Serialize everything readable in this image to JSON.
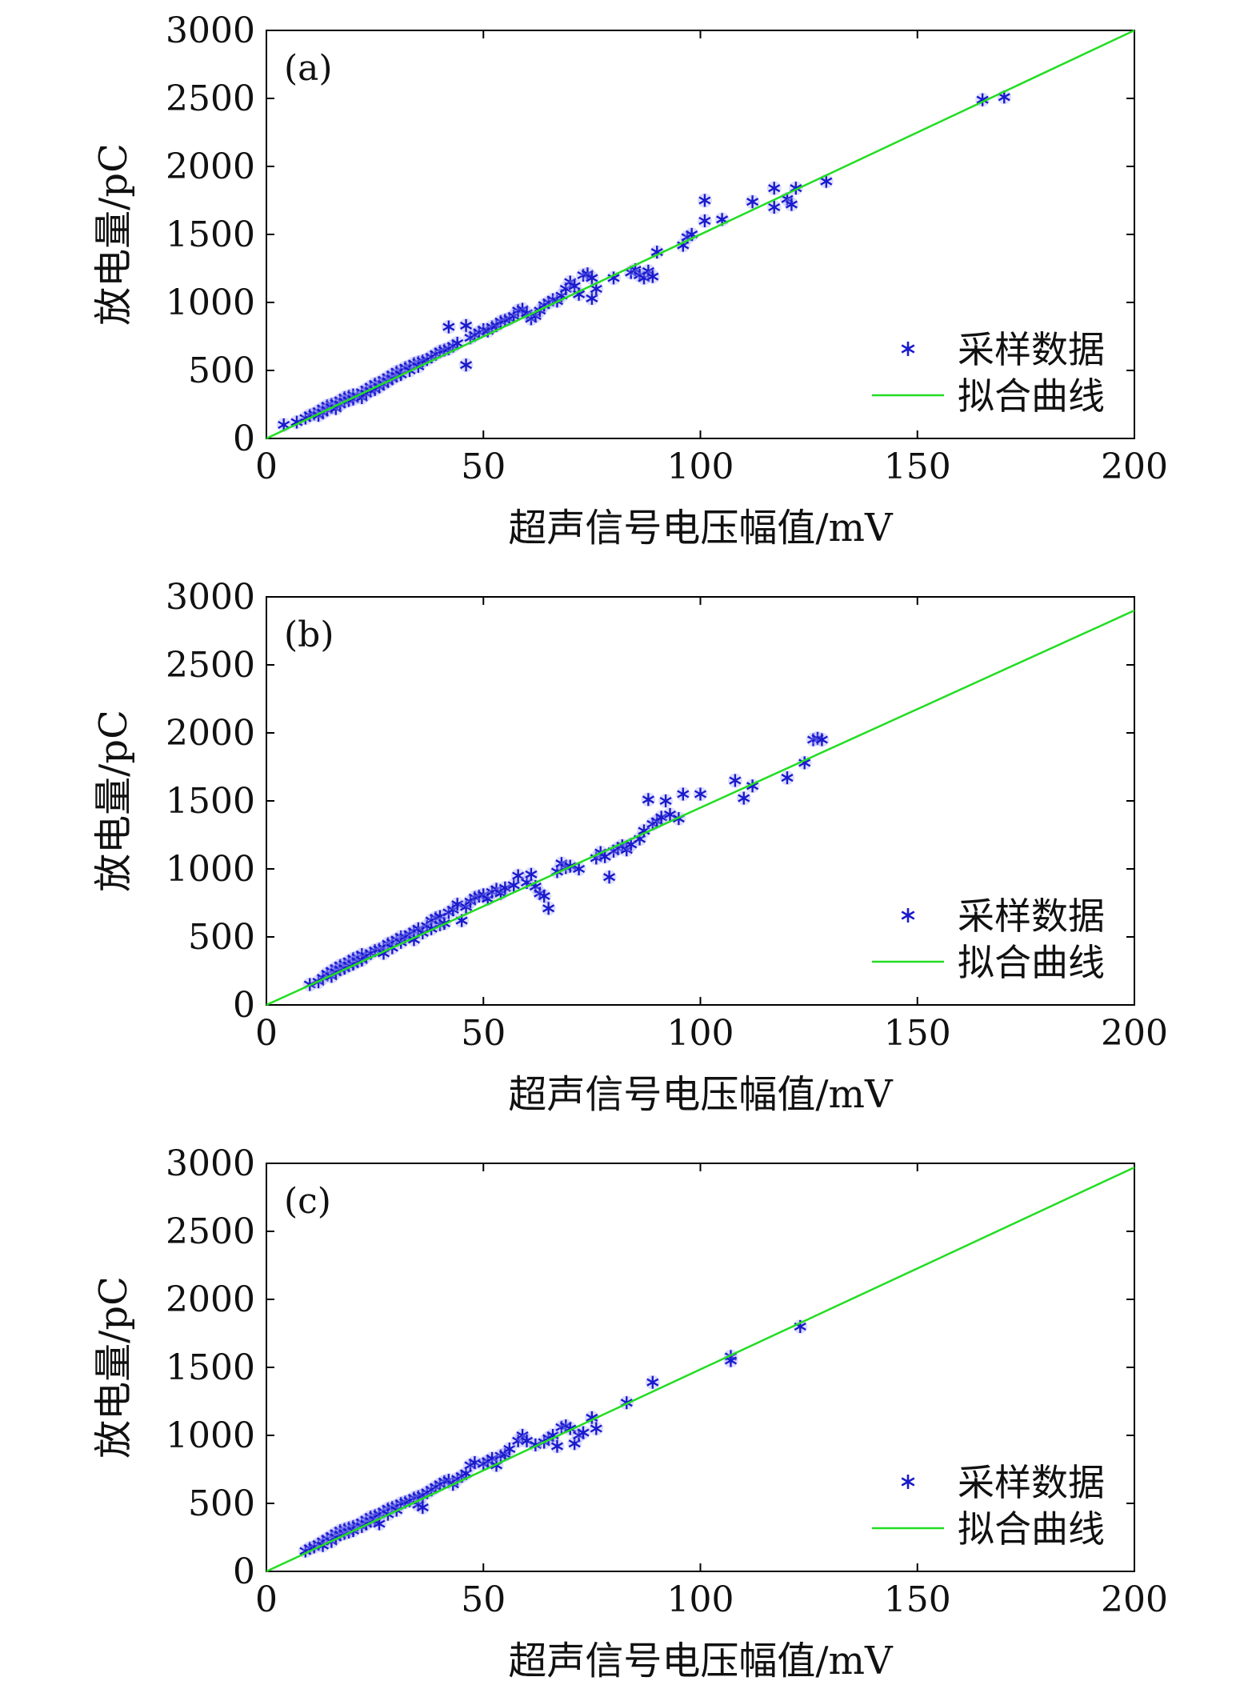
{
  "colors": {
    "points": "#1a1acc",
    "point_halo": "#a0a0ff",
    "fit": "#22dd22",
    "axis": "#000000"
  },
  "legend": {
    "marker_label": "采样数据",
    "line_label": "拟合曲线"
  },
  "chart_data": [
    {
      "type": "scatter",
      "panel_label": "(a)",
      "xlabel": "超声信号电压幅值/mV",
      "ylabel": "放电量/pC",
      "xlim": [
        0,
        200
      ],
      "ylim": [
        0,
        3000
      ],
      "xticks": [
        0,
        50,
        100,
        150,
        200
      ],
      "yticks": [
        0,
        500,
        1000,
        1500,
        2000,
        2500,
        3000
      ],
      "grid": false,
      "legend_position": "lower-right",
      "fit": {
        "slope": 15.0,
        "intercept": 0
      },
      "points": [
        [
          4,
          100
        ],
        [
          7,
          120
        ],
        [
          9,
          150
        ],
        [
          10,
          170
        ],
        [
          11,
          180
        ],
        [
          12,
          200
        ],
        [
          12,
          170
        ],
        [
          13,
          220
        ],
        [
          13,
          190
        ],
        [
          14,
          240
        ],
        [
          14,
          210
        ],
        [
          15,
          250
        ],
        [
          15,
          230
        ],
        [
          16,
          260
        ],
        [
          16,
          220
        ],
        [
          17,
          280
        ],
        [
          17,
          250
        ],
        [
          18,
          300
        ],
        [
          18,
          270
        ],
        [
          19,
          310
        ],
        [
          19,
          280
        ],
        [
          20,
          320
        ],
        [
          20,
          290
        ],
        [
          21,
          310
        ],
        [
          22,
          340
        ],
        [
          22,
          300
        ],
        [
          23,
          360
        ],
        [
          23,
          330
        ],
        [
          24,
          380
        ],
        [
          24,
          350
        ],
        [
          25,
          400
        ],
        [
          25,
          360
        ],
        [
          26,
          410
        ],
        [
          26,
          380
        ],
        [
          27,
          430
        ],
        [
          27,
          400
        ],
        [
          28,
          450
        ],
        [
          28,
          420
        ],
        [
          29,
          470
        ],
        [
          29,
          440
        ],
        [
          30,
          490
        ],
        [
          30,
          460
        ],
        [
          31,
          500
        ],
        [
          31,
          470
        ],
        [
          32,
          520
        ],
        [
          33,
          530
        ],
        [
          33,
          500
        ],
        [
          34,
          550
        ],
        [
          35,
          560
        ],
        [
          35,
          530
        ],
        [
          36,
          570
        ],
        [
          37,
          580
        ],
        [
          38,
          600
        ],
        [
          39,
          620
        ],
        [
          40,
          640
        ],
        [
          41,
          650
        ],
        [
          42,
          660
        ],
        [
          42,
          820
        ],
        [
          43,
          680
        ],
        [
          44,
          700
        ],
        [
          46,
          830
        ],
        [
          46,
          540
        ],
        [
          47,
          740
        ],
        [
          48,
          760
        ],
        [
          49,
          780
        ],
        [
          50,
          800
        ],
        [
          51,
          790
        ],
        [
          52,
          820
        ],
        [
          53,
          830
        ],
        [
          54,
          860
        ],
        [
          55,
          870
        ],
        [
          56,
          880
        ],
        [
          57,
          900
        ],
        [
          58,
          940
        ],
        [
          59,
          950
        ],
        [
          60,
          920
        ],
        [
          61,
          880
        ],
        [
          62,
          900
        ],
        [
          63,
          940
        ],
        [
          64,
          980
        ],
        [
          65,
          1000
        ],
        [
          66,
          1020
        ],
        [
          67,
          1010
        ],
        [
          68,
          1050
        ],
        [
          69,
          1100
        ],
        [
          70,
          1150
        ],
        [
          71,
          1120
        ],
        [
          72,
          1060
        ],
        [
          73,
          1200
        ],
        [
          74,
          1210
        ],
        [
          75,
          1180
        ],
        [
          75,
          1030
        ],
        [
          76,
          1100
        ],
        [
          80,
          1180
        ],
        [
          84,
          1220
        ],
        [
          85,
          1240
        ],
        [
          86,
          1200
        ],
        [
          87,
          1180
        ],
        [
          88,
          1230
        ],
        [
          89,
          1190
        ],
        [
          90,
          1370
        ],
        [
          96,
          1420
        ],
        [
          97,
          1480
        ],
        [
          98,
          1500
        ],
        [
          101,
          1750
        ],
        [
          101,
          1600
        ],
        [
          105,
          1610
        ],
        [
          112,
          1740
        ],
        [
          117,
          1840
        ],
        [
          117,
          1700
        ],
        [
          120,
          1760
        ],
        [
          121,
          1720
        ],
        [
          122,
          1840
        ],
        [
          129,
          1890
        ],
        [
          165,
          2490
        ],
        [
          170,
          2510
        ]
      ]
    },
    {
      "type": "scatter",
      "panel_label": "(b)",
      "xlabel": "超声信号电压幅值/mV",
      "ylabel": "放电量/pC",
      "xlim": [
        0,
        200
      ],
      "ylim": [
        0,
        3000
      ],
      "xticks": [
        0,
        50,
        100,
        150,
        200
      ],
      "yticks": [
        0,
        500,
        1000,
        1500,
        2000,
        2500,
        3000
      ],
      "grid": false,
      "legend_position": "lower-right",
      "fit": {
        "slope": 14.5,
        "intercept": 0
      },
      "points": [
        [
          10,
          150
        ],
        [
          12,
          170
        ],
        [
          13,
          200
        ],
        [
          14,
          230
        ],
        [
          15,
          250
        ],
        [
          15,
          210
        ],
        [
          16,
          270
        ],
        [
          16,
          240
        ],
        [
          17,
          290
        ],
        [
          17,
          260
        ],
        [
          18,
          300
        ],
        [
          18,
          270
        ],
        [
          19,
          320
        ],
        [
          19,
          290
        ],
        [
          20,
          340
        ],
        [
          20,
          300
        ],
        [
          21,
          350
        ],
        [
          21,
          320
        ],
        [
          22,
          370
        ],
        [
          22,
          330
        ],
        [
          23,
          360
        ],
        [
          24,
          380
        ],
        [
          25,
          400
        ],
        [
          26,
          410
        ],
        [
          27,
          420
        ],
        [
          27,
          380
        ],
        [
          28,
          450
        ],
        [
          29,
          460
        ],
        [
          29,
          420
        ],
        [
          30,
          480
        ],
        [
          31,
          500
        ],
        [
          31,
          460
        ],
        [
          32,
          500
        ],
        [
          33,
          520
        ],
        [
          34,
          540
        ],
        [
          34,
          480
        ],
        [
          35,
          560
        ],
        [
          36,
          530
        ],
        [
          37,
          580
        ],
        [
          38,
          620
        ],
        [
          38,
          560
        ],
        [
          39,
          640
        ],
        [
          40,
          650
        ],
        [
          40,
          590
        ],
        [
          41,
          600
        ],
        [
          42,
          680
        ],
        [
          43,
          700
        ],
        [
          44,
          740
        ],
        [
          45,
          620
        ],
        [
          46,
          720
        ],
        [
          47,
          760
        ],
        [
          48,
          790
        ],
        [
          49,
          800
        ],
        [
          50,
          810
        ],
        [
          51,
          780
        ],
        [
          52,
          830
        ],
        [
          53,
          850
        ],
        [
          54,
          820
        ],
        [
          55,
          860
        ],
        [
          57,
          880
        ],
        [
          58,
          950
        ],
        [
          60,
          900
        ],
        [
          61,
          960
        ],
        [
          62,
          870
        ],
        [
          63,
          820
        ],
        [
          64,
          800
        ],
        [
          65,
          710
        ],
        [
          67,
          980
        ],
        [
          68,
          1040
        ],
        [
          69,
          1010
        ],
        [
          70,
          1020
        ],
        [
          72,
          1000
        ],
        [
          76,
          1080
        ],
        [
          77,
          1120
        ],
        [
          78,
          1090
        ],
        [
          79,
          940
        ],
        [
          80,
          1130
        ],
        [
          81,
          1150
        ],
        [
          82,
          1170
        ],
        [
          83,
          1140
        ],
        [
          84,
          1180
        ],
        [
          86,
          1220
        ],
        [
          87,
          1280
        ],
        [
          88,
          1510
        ],
        [
          89,
          1330
        ],
        [
          90,
          1350
        ],
        [
          91,
          1380
        ],
        [
          92,
          1500
        ],
        [
          93,
          1400
        ],
        [
          95,
          1370
        ],
        [
          96,
          1550
        ],
        [
          100,
          1550
        ],
        [
          108,
          1650
        ],
        [
          110,
          1520
        ],
        [
          112,
          1610
        ],
        [
          120,
          1670
        ],
        [
          124,
          1780
        ],
        [
          126,
          1950
        ],
        [
          127,
          1960
        ],
        [
          128,
          1950
        ]
      ]
    },
    {
      "type": "scatter",
      "panel_label": "(c)",
      "xlabel": "超声信号电压幅值/mV",
      "ylabel": "放电量/pC",
      "xlim": [
        0,
        200
      ],
      "ylim": [
        0,
        3000
      ],
      "xticks": [
        0,
        50,
        100,
        150,
        200
      ],
      "yticks": [
        0,
        500,
        1000,
        1500,
        2000,
        2500,
        3000
      ],
      "grid": false,
      "legend_position": "lower-right",
      "fit": {
        "slope": 14.85,
        "intercept": 0
      },
      "points": [
        [
          9,
          150
        ],
        [
          10,
          170
        ],
        [
          11,
          180
        ],
        [
          12,
          200
        ],
        [
          13,
          220
        ],
        [
          13,
          190
        ],
        [
          14,
          240
        ],
        [
          15,
          260
        ],
        [
          15,
          220
        ],
        [
          16,
          280
        ],
        [
          16,
          250
        ],
        [
          17,
          300
        ],
        [
          17,
          270
        ],
        [
          18,
          310
        ],
        [
          18,
          280
        ],
        [
          19,
          320
        ],
        [
          19,
          290
        ],
        [
          20,
          330
        ],
        [
          20,
          300
        ],
        [
          21,
          340
        ],
        [
          22,
          360
        ],
        [
          22,
          330
        ],
        [
          23,
          380
        ],
        [
          23,
          350
        ],
        [
          24,
          400
        ],
        [
          24,
          370
        ],
        [
          25,
          410
        ],
        [
          25,
          380
        ],
        [
          26,
          420
        ],
        [
          26,
          350
        ],
        [
          27,
          440
        ],
        [
          28,
          460
        ],
        [
          28,
          420
        ],
        [
          29,
          470
        ],
        [
          30,
          480
        ],
        [
          30,
          450
        ],
        [
          31,
          500
        ],
        [
          32,
          510
        ],
        [
          33,
          520
        ],
        [
          34,
          540
        ],
        [
          35,
          550
        ],
        [
          35,
          490
        ],
        [
          36,
          560
        ],
        [
          36,
          470
        ],
        [
          37,
          580
        ],
        [
          38,
          600
        ],
        [
          39,
          620
        ],
        [
          40,
          640
        ],
        [
          41,
          660
        ],
        [
          42,
          670
        ],
        [
          43,
          640
        ],
        [
          44,
          680
        ],
        [
          45,
          700
        ],
        [
          46,
          720
        ],
        [
          47,
          780
        ],
        [
          48,
          800
        ],
        [
          50,
          790
        ],
        [
          51,
          810
        ],
        [
          52,
          830
        ],
        [
          53,
          780
        ],
        [
          54,
          850
        ],
        [
          55,
          860
        ],
        [
          56,
          900
        ],
        [
          58,
          960
        ],
        [
          59,
          1000
        ],
        [
          60,
          960
        ],
        [
          62,
          930
        ],
        [
          64,
          950
        ],
        [
          65,
          980
        ],
        [
          66,
          1000
        ],
        [
          67,
          920
        ],
        [
          68,
          1060
        ],
        [
          69,
          1070
        ],
        [
          70,
          1050
        ],
        [
          71,
          940
        ],
        [
          72,
          1000
        ],
        [
          73,
          1020
        ],
        [
          75,
          1130
        ],
        [
          76,
          1050
        ],
        [
          83,
          1240
        ],
        [
          89,
          1390
        ],
        [
          107,
          1580
        ],
        [
          107,
          1550
        ],
        [
          123,
          1800
        ]
      ]
    }
  ]
}
